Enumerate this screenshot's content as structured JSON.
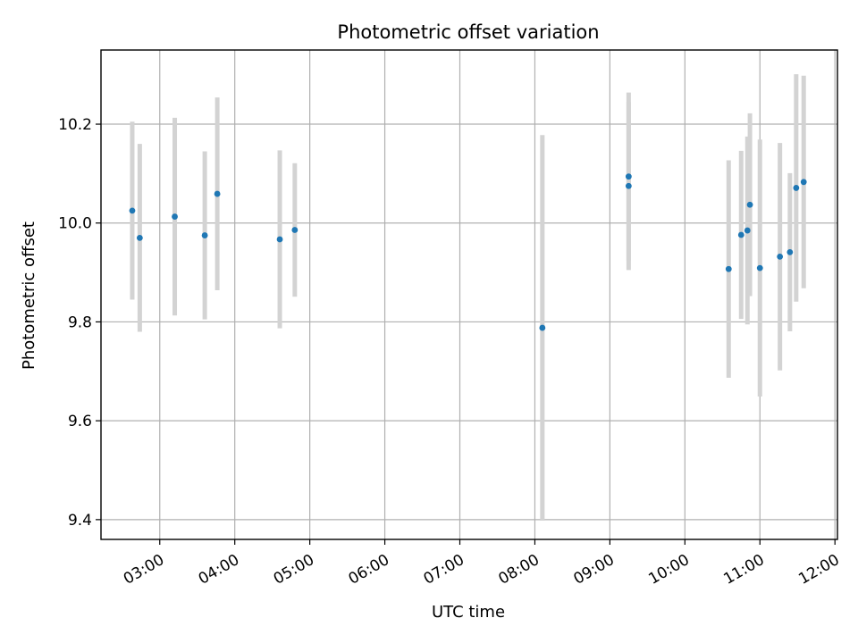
{
  "chart_data": {
    "type": "scatter",
    "title": "Photometric offset variation",
    "xlabel": "UTC time",
    "ylabel": "Photometric offset",
    "xlim": [
      "02:13",
      "12:02"
    ],
    "ylim": [
      9.36,
      10.35
    ],
    "x_ticks": [
      "03:00",
      "04:00",
      "05:00",
      "06:00",
      "07:00",
      "08:00",
      "09:00",
      "10:00",
      "11:00",
      "12:00"
    ],
    "y_ticks": [
      9.4,
      9.6,
      9.8,
      10.0,
      10.2
    ],
    "y_tick_labels": [
      "9.4",
      "9.6",
      "9.8",
      "10.0",
      "10.2"
    ],
    "grid": true,
    "marker_color": "#1f77b4",
    "errorbar_color": "#d3d3d3",
    "series": [
      {
        "points": [
          {
            "x": "02:38",
            "y": 10.025,
            "err": 0.18
          },
          {
            "x": "02:44",
            "y": 9.97,
            "err": 0.19
          },
          {
            "x": "03:12",
            "y": 10.013,
            "err": 0.2
          },
          {
            "x": "03:36",
            "y": 9.975,
            "err": 0.17
          },
          {
            "x": "03:46",
            "y": 10.059,
            "err": 0.195
          },
          {
            "x": "04:36",
            "y": 9.967,
            "err": 0.18
          },
          {
            "x": "04:48",
            "y": 9.986,
            "err": 0.135
          },
          {
            "x": "08:06",
            "y": 9.788,
            "err": 0.39
          },
          {
            "x": "09:15",
            "y": 10.075,
            "err": 0.17
          },
          {
            "x": "09:15",
            "y": 10.094,
            "err": 0.17
          },
          {
            "x": "10:35",
            "y": 9.907,
            "err": 0.22
          },
          {
            "x": "10:45",
            "y": 9.976,
            "err": 0.17
          },
          {
            "x": "10:50",
            "y": 9.985,
            "err": 0.19
          },
          {
            "x": "10:52",
            "y": 10.037,
            "err": 0.185
          },
          {
            "x": "11:00",
            "y": 9.909,
            "err": 0.26
          },
          {
            "x": "11:16",
            "y": 9.932,
            "err": 0.23
          },
          {
            "x": "11:24",
            "y": 9.941,
            "err": 0.16
          },
          {
            "x": "11:29",
            "y": 10.071,
            "err": 0.23
          },
          {
            "x": "11:35",
            "y": 10.083,
            "err": 0.215
          }
        ]
      }
    ]
  }
}
